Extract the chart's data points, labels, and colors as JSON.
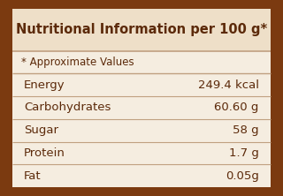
{
  "title": "Nutritional Information per 100 g*",
  "approx_note": "* Approximate Values",
  "rows": [
    [
      "Energy",
      "249.4 kcal"
    ],
    [
      "Carbohydrates",
      "60.60 g"
    ],
    [
      "Sugar",
      "58 g"
    ],
    [
      "Protein",
      "1.7 g"
    ],
    [
      "Fat",
      "0.05g"
    ]
  ],
  "bg_color": "#f5ede0",
  "border_color": "#7B3A10",
  "text_color": "#5C2A0A",
  "title_bg": "#eedfc8",
  "line_color": "#c0a080",
  "title_fontsize": 10.5,
  "body_fontsize": 9.5,
  "note_fontsize": 8.5
}
